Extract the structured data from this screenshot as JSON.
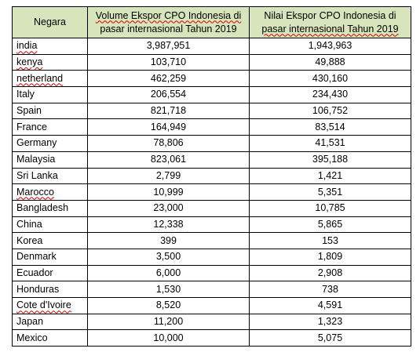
{
  "table": {
    "headers": {
      "country": "Negara",
      "volume_line1": "Volume Ekspor CPO Indonesia di",
      "volume_line2": "pasar internasional Tahun 2019",
      "value_line1": "Nilai Ekspor CPO Indonesia di",
      "value_line2": "pasar internasional Tahun 2019"
    },
    "rows": [
      {
        "country": "india",
        "volume": "3,987,951",
        "value": "1,943,963"
      },
      {
        "country": "kenya",
        "volume": "103,710",
        "value": "49,888"
      },
      {
        "country": "netherland",
        "volume": "462,259",
        "value": "430,160"
      },
      {
        "country": "Italy",
        "volume": "206,554",
        "value": "234,430"
      },
      {
        "country": "Spain",
        "volume": "821,718",
        "value": "106,752"
      },
      {
        "country": "France",
        "volume": "164,949",
        "value": "83,514"
      },
      {
        "country": "Germany",
        "volume": "78,806",
        "value": "41,531"
      },
      {
        "country": "Malaysia",
        "volume": "823,061",
        "value": "395,188"
      },
      {
        "country": "Sri Lanka",
        "volume": "2,799",
        "value": "1,421"
      },
      {
        "country": "Marocco",
        "volume": "10,999",
        "value": "5,351"
      },
      {
        "country": "Bangladesh",
        "volume": "23,000",
        "value": "10,785"
      },
      {
        "country": "China",
        "volume": "12,338",
        "value": "5,865"
      },
      {
        "country": "Korea",
        "volume": "399",
        "value": "153"
      },
      {
        "country": "Denmark",
        "volume": "3,500",
        "value": "1,809"
      },
      {
        "country": "Ecuador",
        "volume": "6,000",
        "value": "2,908"
      },
      {
        "country": "Honduras",
        "volume": "1,530",
        "value": "738"
      },
      {
        "country": "Cote d'Ivoire",
        "volume": "8,520",
        "value": "4,591"
      },
      {
        "country": "Japan",
        "volume": "11,200",
        "value": "1,323"
      },
      {
        "country": "Mexico",
        "volume": "10,000",
        "value": "5,075"
      }
    ]
  },
  "colors": {
    "header_fill": "#d8e4bc",
    "border": "#000000",
    "spellcheck_underline": "#d00000"
  }
}
